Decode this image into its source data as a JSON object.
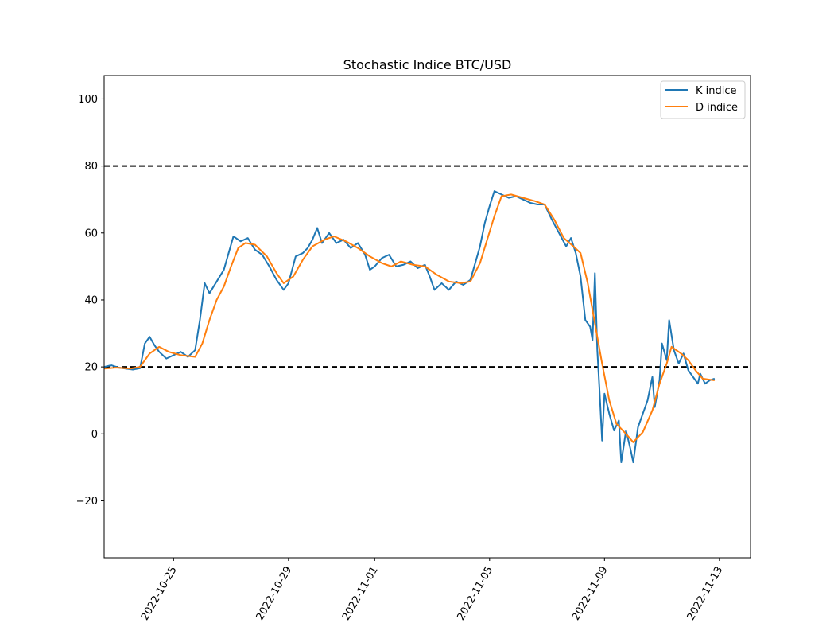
{
  "chart_data": {
    "type": "line",
    "title": "Stochastic Indice BTC/USD",
    "xlabel": "",
    "ylabel": "",
    "xlim": [
      "2022-10-22T14:00",
      "2022-11-14T02:00"
    ],
    "ylim": [
      -37,
      107
    ],
    "x_ticks": [
      "2022-10-25",
      "2022-10-29",
      "2022-11-01",
      "2022-11-05",
      "2022-11-09",
      "2022-11-13"
    ],
    "y_ticks": [
      100,
      80,
      60,
      40,
      20,
      0,
      -20
    ],
    "y_tick_labels": [
      "100",
      "80",
      "60",
      "40",
      "20",
      "0",
      "−20"
    ],
    "hlines": [
      80,
      20
    ],
    "grid": false,
    "legend_position": "upper right",
    "colors": {
      "k": "#1f77b4",
      "d": "#ff7f0e",
      "hline": "#000000"
    },
    "series": [
      {
        "name": "K indice",
        "color": "#1f77b4",
        "points": [
          [
            "2022-10-22T14:00",
            20.0
          ],
          [
            "2022-10-22T20:00",
            20.5
          ],
          [
            "2022-10-23T02:00",
            19.8
          ],
          [
            "2022-10-23T08:00",
            19.5
          ],
          [
            "2022-10-23T14:00",
            19.2
          ],
          [
            "2022-10-23T20:00",
            19.6
          ],
          [
            "2022-10-24T00:00",
            27.0
          ],
          [
            "2022-10-24T04:00",
            29.0
          ],
          [
            "2022-10-24T08:00",
            26.5
          ],
          [
            "2022-10-24T12:00",
            24.5
          ],
          [
            "2022-10-24T18:00",
            22.5
          ],
          [
            "2022-10-25T00:00",
            23.5
          ],
          [
            "2022-10-25T06:00",
            24.5
          ],
          [
            "2022-10-25T12:00",
            23.0
          ],
          [
            "2022-10-25T18:00",
            25.0
          ],
          [
            "2022-10-25T22:00",
            34.0
          ],
          [
            "2022-10-26T02:00",
            45.0
          ],
          [
            "2022-10-26T06:00",
            42.0
          ],
          [
            "2022-10-26T12:00",
            45.5
          ],
          [
            "2022-10-26T18:00",
            49.0
          ],
          [
            "2022-10-26T22:00",
            54.0
          ],
          [
            "2022-10-27T02:00",
            59.0
          ],
          [
            "2022-10-27T08:00",
            57.5
          ],
          [
            "2022-10-27T14:00",
            58.5
          ],
          [
            "2022-10-27T20:00",
            55.0
          ],
          [
            "2022-10-28T02:00",
            53.5
          ],
          [
            "2022-10-28T08:00",
            50.0
          ],
          [
            "2022-10-28T14:00",
            46.0
          ],
          [
            "2022-10-28T20:00",
            43.0
          ],
          [
            "2022-10-29T00:00",
            45.0
          ],
          [
            "2022-10-29T06:00",
            53.0
          ],
          [
            "2022-10-29T12:00",
            54.0
          ],
          [
            "2022-10-29T16:00",
            55.5
          ],
          [
            "2022-10-29T20:00",
            58.0
          ],
          [
            "2022-10-30T00:00",
            61.5
          ],
          [
            "2022-10-30T04:00",
            57.0
          ],
          [
            "2022-10-30T10:00",
            60.0
          ],
          [
            "2022-10-30T16:00",
            57.0
          ],
          [
            "2022-10-30T22:00",
            58.0
          ],
          [
            "2022-10-31T04:00",
            55.5
          ],
          [
            "2022-10-31T10:00",
            57.0
          ],
          [
            "2022-10-31T16:00",
            53.5
          ],
          [
            "2022-10-31T20:00",
            49.0
          ],
          [
            "2022-11-01T00:00",
            50.0
          ],
          [
            "2022-11-01T06:00",
            52.5
          ],
          [
            "2022-11-01T12:00",
            53.5
          ],
          [
            "2022-11-01T18:00",
            50.0
          ],
          [
            "2022-11-02T00:00",
            50.5
          ],
          [
            "2022-11-02T06:00",
            51.5
          ],
          [
            "2022-11-02T12:00",
            49.5
          ],
          [
            "2022-11-02T18:00",
            50.5
          ],
          [
            "2022-11-02T22:00",
            47.0
          ],
          [
            "2022-11-03T02:00",
            43.0
          ],
          [
            "2022-11-03T08:00",
            45.0
          ],
          [
            "2022-11-03T14:00",
            43.0
          ],
          [
            "2022-11-03T20:00",
            45.5
          ],
          [
            "2022-11-04T02:00",
            44.5
          ],
          [
            "2022-11-04T08:00",
            46.0
          ],
          [
            "2022-11-04T12:00",
            51.0
          ],
          [
            "2022-11-04T16:00",
            56.0
          ],
          [
            "2022-11-04T20:00",
            63.0
          ],
          [
            "2022-11-05T00:00",
            68.0
          ],
          [
            "2022-11-05T04:00",
            72.5
          ],
          [
            "2022-11-05T10:00",
            71.5
          ],
          [
            "2022-11-05T16:00",
            70.5
          ],
          [
            "2022-11-05T22:00",
            71.0
          ],
          [
            "2022-11-06T04:00",
            70.0
          ],
          [
            "2022-11-06T10:00",
            69.0
          ],
          [
            "2022-11-06T16:00",
            68.5
          ],
          [
            "2022-11-06T22:00",
            68.5
          ],
          [
            "2022-11-07T04:00",
            64.0
          ],
          [
            "2022-11-07T10:00",
            60.0
          ],
          [
            "2022-11-07T16:00",
            56.0
          ],
          [
            "2022-11-07T20:00",
            58.5
          ],
          [
            "2022-11-08T00:00",
            54.0
          ],
          [
            "2022-11-08T04:00",
            47.0
          ],
          [
            "2022-11-08T08:00",
            34.0
          ],
          [
            "2022-11-08T12:00",
            32.0
          ],
          [
            "2022-11-08T14:00",
            28.0
          ],
          [
            "2022-11-08T16:00",
            48.0
          ],
          [
            "2022-11-08T18:00",
            25.0
          ],
          [
            "2022-11-08T20:00",
            12.0
          ],
          [
            "2022-11-08T22:00",
            -2.0
          ],
          [
            "2022-11-09T00:00",
            12.0
          ],
          [
            "2022-11-09T04:00",
            6.0
          ],
          [
            "2022-11-09T08:00",
            1.0
          ],
          [
            "2022-11-09T12:00",
            4.0
          ],
          [
            "2022-11-09T14:00",
            -8.5
          ],
          [
            "2022-11-09T18:00",
            1.0
          ],
          [
            "2022-11-09T22:00",
            -5.0
          ],
          [
            "2022-11-10T00:00",
            -8.5
          ],
          [
            "2022-11-10T04:00",
            2.0
          ],
          [
            "2022-11-10T08:00",
            6.0
          ],
          [
            "2022-11-10T12:00",
            10.0
          ],
          [
            "2022-11-10T16:00",
            17.0
          ],
          [
            "2022-11-10T18:00",
            8.0
          ],
          [
            "2022-11-10T22:00",
            16.0
          ],
          [
            "2022-11-11T00:00",
            27.0
          ],
          [
            "2022-11-11T04:00",
            22.0
          ],
          [
            "2022-11-11T06:00",
            34.0
          ],
          [
            "2022-11-11T10:00",
            25.0
          ],
          [
            "2022-11-11T14:00",
            21.0
          ],
          [
            "2022-11-11T18:00",
            24.0
          ],
          [
            "2022-11-11T22:00",
            19.0
          ],
          [
            "2022-11-12T02:00",
            17.0
          ],
          [
            "2022-11-12T06:00",
            15.0
          ],
          [
            "2022-11-12T08:00",
            18.0
          ],
          [
            "2022-11-12T12:00",
            15.0
          ],
          [
            "2022-11-12T16:00",
            16.0
          ],
          [
            "2022-11-12T20:00",
            16.5
          ]
        ]
      },
      {
        "name": "D indice",
        "color": "#ff7f0e",
        "points": [
          [
            "2022-10-22T14:00",
            19.5
          ],
          [
            "2022-10-23T00:00",
            19.8
          ],
          [
            "2022-10-23T12:00",
            19.5
          ],
          [
            "2022-10-23T20:00",
            20.0
          ],
          [
            "2022-10-24T04:00",
            24.0
          ],
          [
            "2022-10-24T12:00",
            26.0
          ],
          [
            "2022-10-24T20:00",
            24.5
          ],
          [
            "2022-10-25T06:00",
            23.5
          ],
          [
            "2022-10-25T18:00",
            23.0
          ],
          [
            "2022-10-26T00:00",
            27.0
          ],
          [
            "2022-10-26T06:00",
            34.0
          ],
          [
            "2022-10-26T12:00",
            40.0
          ],
          [
            "2022-10-26T18:00",
            44.0
          ],
          [
            "2022-10-27T00:00",
            50.0
          ],
          [
            "2022-10-27T06:00",
            55.5
          ],
          [
            "2022-10-27T12:00",
            57.0
          ],
          [
            "2022-10-27T20:00",
            56.5
          ],
          [
            "2022-10-28T06:00",
            53.0
          ],
          [
            "2022-10-28T14:00",
            48.0
          ],
          [
            "2022-10-28T20:00",
            45.0
          ],
          [
            "2022-10-29T04:00",
            47.0
          ],
          [
            "2022-10-29T12:00",
            52.0
          ],
          [
            "2022-10-29T20:00",
            56.0
          ],
          [
            "2022-10-30T06:00",
            58.0
          ],
          [
            "2022-10-30T14:00",
            59.0
          ],
          [
            "2022-10-31T00:00",
            57.5
          ],
          [
            "2022-10-31T10:00",
            55.5
          ],
          [
            "2022-10-31T20:00",
            53.0
          ],
          [
            "2022-11-01T06:00",
            51.0
          ],
          [
            "2022-11-01T14:00",
            50.0
          ],
          [
            "2022-11-01T22:00",
            51.5
          ],
          [
            "2022-11-02T08:00",
            50.5
          ],
          [
            "2022-11-02T18:00",
            50.0
          ],
          [
            "2022-11-03T04:00",
            47.5
          ],
          [
            "2022-11-03T14:00",
            45.5
          ],
          [
            "2022-11-04T00:00",
            45.0
          ],
          [
            "2022-11-04T08:00",
            45.5
          ],
          [
            "2022-11-04T16:00",
            51.0
          ],
          [
            "2022-11-04T22:00",
            58.0
          ],
          [
            "2022-11-05T04:00",
            65.0
          ],
          [
            "2022-11-05T10:00",
            71.0
          ],
          [
            "2022-11-05T18:00",
            71.5
          ],
          [
            "2022-11-06T04:00",
            70.5
          ],
          [
            "2022-11-06T14:00",
            69.5
          ],
          [
            "2022-11-06T22:00",
            68.5
          ],
          [
            "2022-11-07T06:00",
            64.0
          ],
          [
            "2022-11-07T14:00",
            58.5
          ],
          [
            "2022-11-07T22:00",
            56.0
          ],
          [
            "2022-11-08T04:00",
            54.0
          ],
          [
            "2022-11-08T10:00",
            45.0
          ],
          [
            "2022-11-08T16:00",
            33.0
          ],
          [
            "2022-11-08T22:00",
            21.0
          ],
          [
            "2022-11-09T04:00",
            10.0
          ],
          [
            "2022-11-09T10:00",
            3.0
          ],
          [
            "2022-11-09T18:00",
            0.0
          ],
          [
            "2022-11-10T00:00",
            -2.5
          ],
          [
            "2022-11-10T08:00",
            0.5
          ],
          [
            "2022-11-10T16:00",
            7.0
          ],
          [
            "2022-11-10T22:00",
            15.0
          ],
          [
            "2022-11-11T04:00",
            21.0
          ],
          [
            "2022-11-11T08:00",
            26.0
          ],
          [
            "2022-11-11T16:00",
            24.0
          ],
          [
            "2022-11-11T22:00",
            22.0
          ],
          [
            "2022-11-12T04:00",
            19.0
          ],
          [
            "2022-11-12T10:00",
            16.5
          ],
          [
            "2022-11-12T20:00",
            16.0
          ]
        ]
      }
    ]
  }
}
